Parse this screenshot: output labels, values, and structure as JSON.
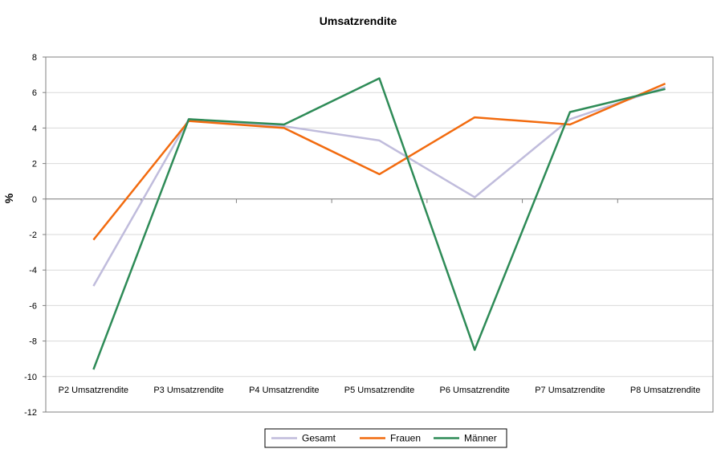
{
  "chart_data": {
    "type": "line",
    "title": "Umsatzrendite",
    "xlabel": "",
    "ylabel": "%",
    "ylim": [
      -12,
      8
    ],
    "ytick_step": 2,
    "grid": true,
    "legend_placement": "bottom",
    "categories": [
      "P2 Umsatzrendite",
      "P3 Umsatzrendite",
      "P4 Umsatzrendite",
      "P5 Umsatzrendite",
      "P6 Umsatzrendite",
      "P7 Umsatzrendite",
      "P8 Umsatzrendite"
    ],
    "series": [
      {
        "name": "Gesamt",
        "color": "#c0bcdc",
        "values": [
          -4.9,
          4.5,
          4.1,
          3.3,
          0.1,
          4.5,
          6.3
        ]
      },
      {
        "name": "Frauen",
        "color": "#f26b0f",
        "values": [
          -2.3,
          4.4,
          4.0,
          1.4,
          4.6,
          4.2,
          6.5
        ]
      },
      {
        "name": "Männer",
        "color": "#2e8b57",
        "values": [
          -9.6,
          4.5,
          4.2,
          6.8,
          -8.5,
          4.9,
          6.2
        ]
      }
    ]
  }
}
